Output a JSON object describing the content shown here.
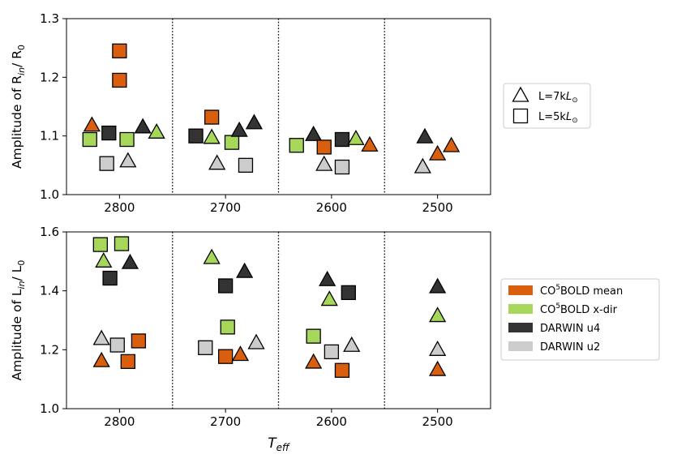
{
  "colors": {
    "co5bold_mean": "#d95f0e",
    "co5bold_xdir": "#a6d75b",
    "darwin_u4": "#333333",
    "darwin_u2": "#cccccc",
    "edge": "#000000"
  },
  "chart_data": [
    {
      "type": "scatter",
      "ylabel_text": "Amplitude of R",
      "ylabel_sub": "in",
      "ylabel_tail": "/ R",
      "ylabel_zero": "0",
      "xlim": [
        2850,
        2450
      ],
      "ylim": [
        1.0,
        1.3
      ],
      "xticks": [
        2800,
        2700,
        2600,
        2500
      ],
      "xtick_labels": [
        "2800",
        "2700",
        "2600",
        "2500"
      ],
      "yticks": [
        1.0,
        1.1,
        1.2,
        1.3
      ],
      "ytick_labels": [
        "1.0",
        "1.1",
        "1.2",
        "1.3"
      ],
      "separators": [
        2750,
        2650,
        2550
      ],
      "legend": {
        "placement": "right",
        "entries": [
          {
            "marker": "triangle",
            "label": "L=7k",
            "sym": "L",
            "sub": "⊙"
          },
          {
            "marker": "square",
            "label": "L=5k",
            "sym": "L",
            "sub": "⊙"
          }
        ]
      },
      "points": [
        {
          "x": 2800,
          "y": 1.245,
          "marker": "square",
          "series": "co5bold_mean"
        },
        {
          "x": 2800,
          "y": 1.195,
          "marker": "square",
          "series": "co5bold_mean"
        },
        {
          "x": 2826,
          "y": 1.118,
          "marker": "triangle",
          "series": "co5bold_mean"
        },
        {
          "x": 2828,
          "y": 1.094,
          "marker": "square",
          "series": "co5bold_xdir"
        },
        {
          "x": 2810,
          "y": 1.105,
          "marker": "square",
          "series": "darwin_u4"
        },
        {
          "x": 2812,
          "y": 1.053,
          "marker": "square",
          "series": "darwin_u2"
        },
        {
          "x": 2793,
          "y": 1.094,
          "marker": "square",
          "series": "co5bold_xdir"
        },
        {
          "x": 2792,
          "y": 1.057,
          "marker": "triangle",
          "series": "darwin_u2"
        },
        {
          "x": 2778,
          "y": 1.115,
          "marker": "triangle",
          "series": "darwin_u4"
        },
        {
          "x": 2765,
          "y": 1.106,
          "marker": "triangle",
          "series": "co5bold_xdir"
        },
        {
          "x": 2728,
          "y": 1.1,
          "marker": "square",
          "series": "darwin_u4"
        },
        {
          "x": 2713,
          "y": 1.132,
          "marker": "square",
          "series": "co5bold_mean"
        },
        {
          "x": 2713,
          "y": 1.097,
          "marker": "triangle",
          "series": "co5bold_xdir"
        },
        {
          "x": 2708,
          "y": 1.053,
          "marker": "triangle",
          "series": "darwin_u2"
        },
        {
          "x": 2694,
          "y": 1.089,
          "marker": "square",
          "series": "co5bold_xdir"
        },
        {
          "x": 2681,
          "y": 1.05,
          "marker": "square",
          "series": "darwin_u2"
        },
        {
          "x": 2687,
          "y": 1.109,
          "marker": "triangle",
          "series": "darwin_u4"
        },
        {
          "x": 2673,
          "y": 1.122,
          "marker": "triangle",
          "series": "darwin_u4"
        },
        {
          "x": 2633,
          "y": 1.084,
          "marker": "square",
          "series": "co5bold_xdir"
        },
        {
          "x": 2617,
          "y": 1.102,
          "marker": "triangle",
          "series": "darwin_u4"
        },
        {
          "x": 2607,
          "y": 1.051,
          "marker": "triangle",
          "series": "darwin_u2"
        },
        {
          "x": 2607,
          "y": 1.081,
          "marker": "square",
          "series": "co5bold_mean"
        },
        {
          "x": 2590,
          "y": 1.094,
          "marker": "square",
          "series": "darwin_u4"
        },
        {
          "x": 2590,
          "y": 1.047,
          "marker": "square",
          "series": "darwin_u2"
        },
        {
          "x": 2577,
          "y": 1.095,
          "marker": "triangle",
          "series": "co5bold_xdir"
        },
        {
          "x": 2564,
          "y": 1.084,
          "marker": "triangle",
          "series": "co5bold_mean"
        },
        {
          "x": 2512,
          "y": 1.098,
          "marker": "triangle",
          "series": "darwin_u4"
        },
        {
          "x": 2514,
          "y": 1.047,
          "marker": "triangle",
          "series": "darwin_u2"
        },
        {
          "x": 2500,
          "y": 1.069,
          "marker": "triangle",
          "series": "co5bold_mean"
        },
        {
          "x": 2487,
          "y": 1.083,
          "marker": "triangle",
          "series": "co5bold_mean"
        }
      ]
    },
    {
      "type": "scatter",
      "ylabel_text": "Amplitude of L",
      "ylabel_sub": "in",
      "ylabel_tail": "/ L",
      "ylabel_zero": "0",
      "xlabel_sym": "T",
      "xlabel_sub": "eff",
      "xlim": [
        2850,
        2450
      ],
      "ylim": [
        1.0,
        1.6
      ],
      "xticks": [
        2800,
        2700,
        2600,
        2500
      ],
      "xtick_labels": [
        "2800",
        "2700",
        "2600",
        "2500"
      ],
      "yticks": [
        1.0,
        1.2,
        1.4,
        1.6
      ],
      "ytick_labels": [
        "1.0",
        "1.2",
        "1.4",
        "1.6"
      ],
      "separators": [
        2750,
        2650,
        2550
      ],
      "legend": {
        "placement": "right",
        "entries": [
          {
            "series": "co5bold_mean",
            "pre": "CO",
            "sup": "5",
            "post": "BOLD mean"
          },
          {
            "series": "co5bold_xdir",
            "pre": "CO",
            "sup": "5",
            "post": "BOLD x-dir"
          },
          {
            "series": "darwin_u4",
            "pre": "DARWIN u4",
            "sup": "",
            "post": ""
          },
          {
            "series": "darwin_u2",
            "pre": "DARWIN u2",
            "sup": "",
            "post": ""
          }
        ]
      },
      "points": [
        {
          "x": 2818,
          "y": 1.557,
          "marker": "square",
          "series": "co5bold_xdir"
        },
        {
          "x": 2798,
          "y": 1.56,
          "marker": "square",
          "series": "co5bold_xdir"
        },
        {
          "x": 2815,
          "y": 1.5,
          "marker": "triangle",
          "series": "co5bold_xdir"
        },
        {
          "x": 2809,
          "y": 1.443,
          "marker": "square",
          "series": "darwin_u4"
        },
        {
          "x": 2790,
          "y": 1.495,
          "marker": "triangle",
          "series": "darwin_u4"
        },
        {
          "x": 2817,
          "y": 1.237,
          "marker": "triangle",
          "series": "darwin_u2"
        },
        {
          "x": 2802,
          "y": 1.216,
          "marker": "square",
          "series": "darwin_u2"
        },
        {
          "x": 2782,
          "y": 1.23,
          "marker": "square",
          "series": "co5bold_mean"
        },
        {
          "x": 2817,
          "y": 1.162,
          "marker": "triangle",
          "series": "co5bold_mean"
        },
        {
          "x": 2792,
          "y": 1.16,
          "marker": "square",
          "series": "co5bold_mean"
        },
        {
          "x": 2713,
          "y": 1.512,
          "marker": "triangle",
          "series": "co5bold_xdir"
        },
        {
          "x": 2700,
          "y": 1.417,
          "marker": "square",
          "series": "darwin_u4"
        },
        {
          "x": 2682,
          "y": 1.465,
          "marker": "triangle",
          "series": "darwin_u4"
        },
        {
          "x": 2698,
          "y": 1.277,
          "marker": "square",
          "series": "co5bold_xdir"
        },
        {
          "x": 2719,
          "y": 1.207,
          "marker": "square",
          "series": "darwin_u2"
        },
        {
          "x": 2671,
          "y": 1.223,
          "marker": "triangle",
          "series": "darwin_u2"
        },
        {
          "x": 2700,
          "y": 1.177,
          "marker": "square",
          "series": "co5bold_mean"
        },
        {
          "x": 2686,
          "y": 1.183,
          "marker": "triangle",
          "series": "co5bold_mean"
        },
        {
          "x": 2604,
          "y": 1.437,
          "marker": "triangle",
          "series": "darwin_u4"
        },
        {
          "x": 2584,
          "y": 1.394,
          "marker": "square",
          "series": "darwin_u4"
        },
        {
          "x": 2602,
          "y": 1.37,
          "marker": "triangle",
          "series": "co5bold_xdir"
        },
        {
          "x": 2617,
          "y": 1.246,
          "marker": "square",
          "series": "co5bold_xdir"
        },
        {
          "x": 2581,
          "y": 1.214,
          "marker": "triangle",
          "series": "darwin_u2"
        },
        {
          "x": 2600,
          "y": 1.193,
          "marker": "square",
          "series": "darwin_u2"
        },
        {
          "x": 2617,
          "y": 1.157,
          "marker": "triangle",
          "series": "co5bold_mean"
        },
        {
          "x": 2590,
          "y": 1.13,
          "marker": "square",
          "series": "co5bold_mean"
        },
        {
          "x": 2500,
          "y": 1.413,
          "marker": "triangle",
          "series": "darwin_u4"
        },
        {
          "x": 2500,
          "y": 1.315,
          "marker": "triangle",
          "series": "co5bold_xdir"
        },
        {
          "x": 2500,
          "y": 1.2,
          "marker": "triangle",
          "series": "darwin_u2"
        },
        {
          "x": 2500,
          "y": 1.132,
          "marker": "triangle",
          "series": "co5bold_mean"
        }
      ]
    }
  ]
}
